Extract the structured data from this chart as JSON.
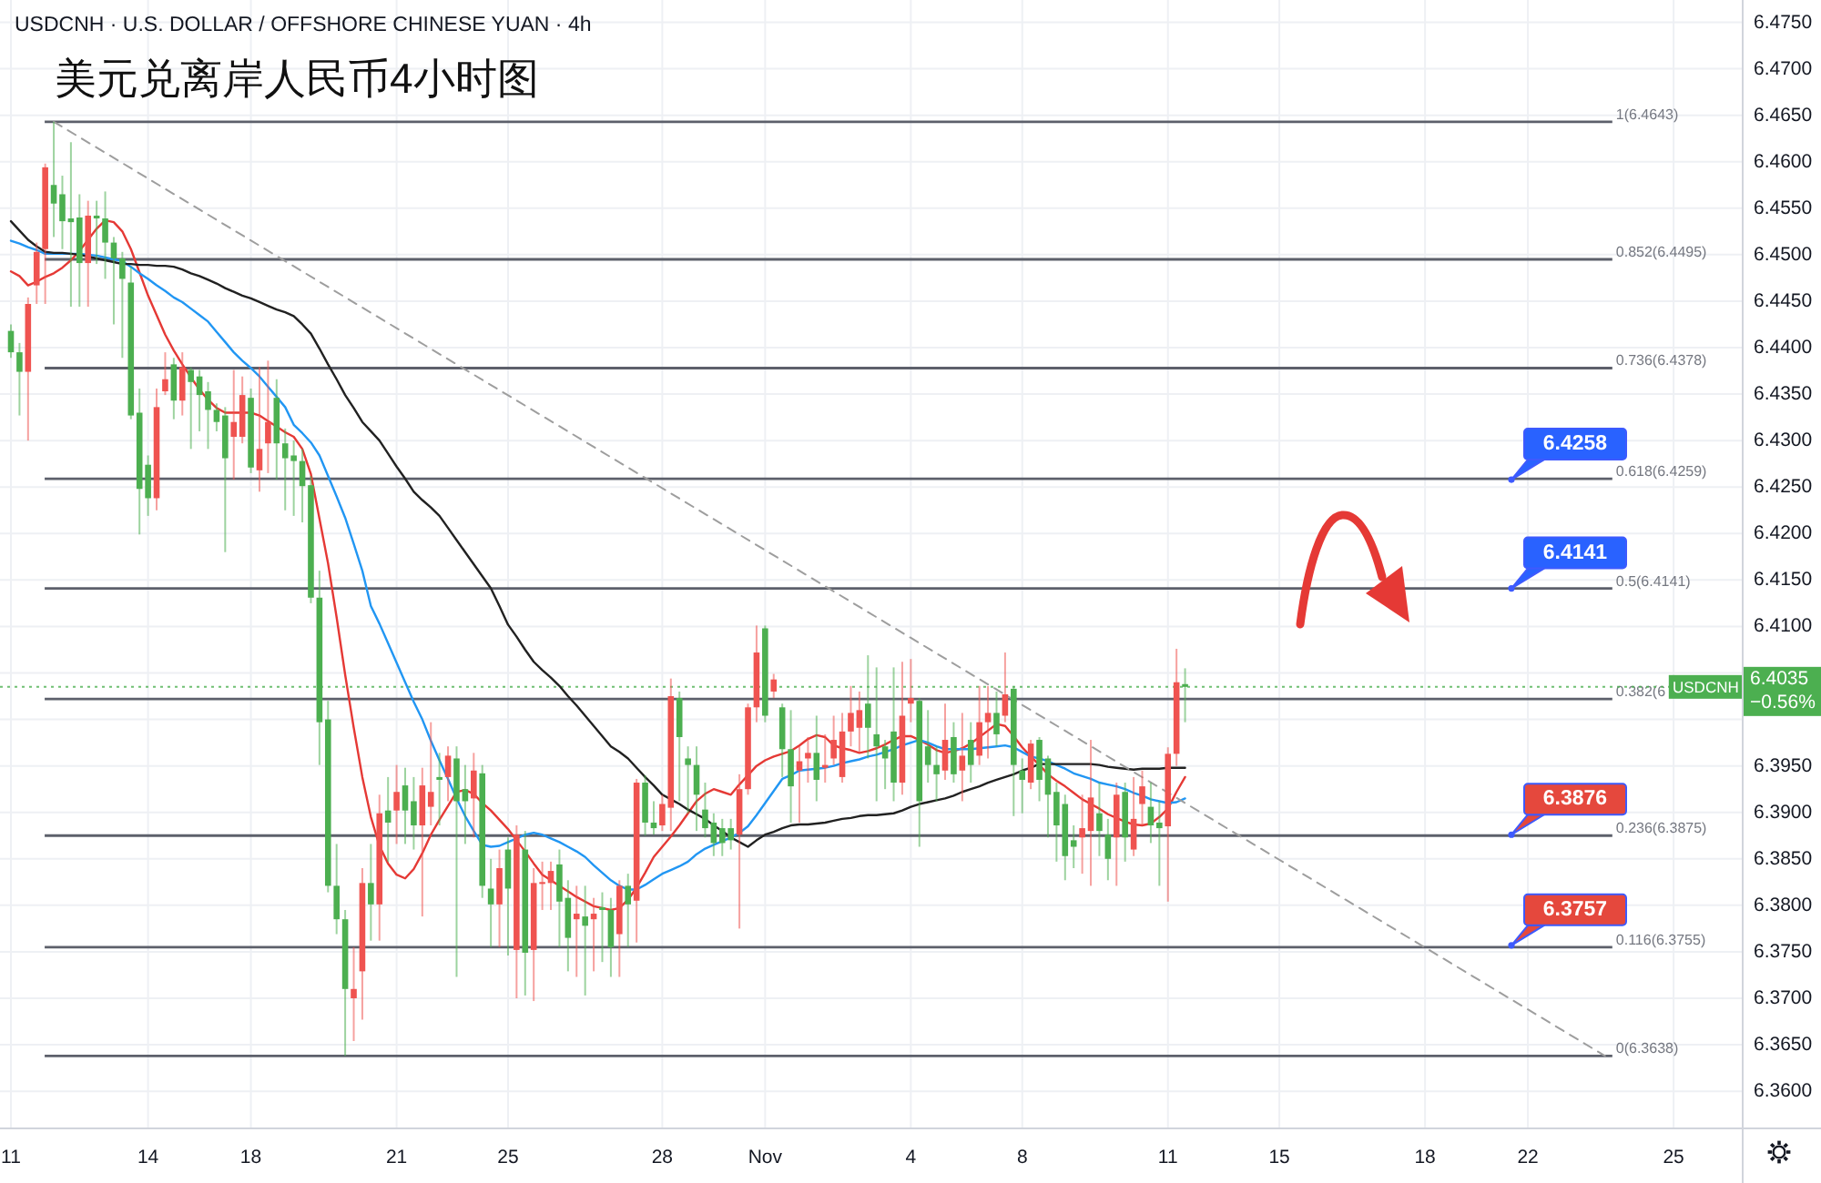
{
  "chart_data": {
    "type": "candlestick",
    "title": "美元兑离岸人民币4小时图",
    "subtitle": "USDCNH · U.S. DOLLAR / OFFSHORE CHINESE YUAN · 4h",
    "categories": [
      "11",
      null,
      null,
      null,
      null,
      null,
      null,
      null,
      null,
      null,
      null,
      null,
      null,
      null,
      null,
      null,
      "14",
      null,
      null,
      null,
      null,
      null,
      null,
      null,
      null,
      null,
      null,
      null,
      "18",
      null,
      null,
      null,
      null,
      null,
      null,
      null,
      null,
      null,
      null,
      null,
      null,
      null,
      null,
      null,
      null,
      "21",
      null,
      null,
      null,
      null,
      null,
      null,
      null,
      null,
      null,
      null,
      null,
      null,
      "25",
      null,
      null,
      null,
      null,
      null,
      null,
      null,
      null,
      null,
      null,
      null,
      null,
      null,
      null,
      null,
      null,
      null,
      "28",
      null,
      null,
      null,
      null,
      null,
      null,
      null,
      null,
      null,
      null,
      null,
      "Nov",
      null,
      null,
      null,
      null,
      null,
      null,
      null,
      null,
      null,
      null,
      null,
      null,
      null,
      null,
      null,
      null,
      "4",
      null,
      null,
      null,
      null,
      null,
      null,
      null,
      null,
      null,
      null,
      null,
      null,
      "8",
      null,
      null,
      null,
      null,
      null,
      null,
      null,
      null,
      null,
      null,
      null,
      null,
      null,
      null,
      null,
      null,
      "11",
      null,
      null,
      null,
      null,
      null,
      null,
      null,
      null,
      null,
      null,
      null,
      null,
      "15",
      null,
      null,
      null,
      null,
      null,
      null,
      null,
      null,
      null,
      null,
      null,
      null,
      null,
      null,
      null,
      null,
      "18",
      null,
      null,
      null,
      null,
      null,
      null,
      null,
      null,
      null,
      null,
      null,
      "22",
      null,
      null,
      null,
      null,
      null,
      null,
      null,
      null,
      null,
      null,
      null,
      null,
      null,
      null,
      null,
      null,
      "25",
      null,
      null,
      null,
      null,
      null,
      null,
      null
    ],
    "ohlc": [
      [
        6.4418,
        6.4425,
        6.4389,
        6.4395
      ],
      [
        6.4395,
        6.4405,
        6.4327,
        6.4374
      ],
      [
        6.4374,
        6.4454,
        6.43,
        6.4447
      ],
      [
        6.4467,
        6.4513,
        6.4447,
        6.4503
      ],
      [
        6.4506,
        6.4598,
        6.4447,
        6.4594
      ],
      [
        6.4575,
        6.4643,
        6.4519,
        6.4555
      ],
      [
        6.4565,
        6.4585,
        6.4506,
        6.4536
      ],
      [
        6.4539,
        6.4621,
        6.4444,
        6.4535
      ],
      [
        6.454,
        6.4565,
        6.4444,
        6.4491
      ],
      [
        6.4491,
        6.4558,
        6.4444,
        6.4542
      ],
      [
        6.4542,
        6.4558,
        6.449,
        6.4539
      ],
      [
        6.4539,
        6.4568,
        6.4474,
        6.4513
      ],
      [
        6.4513,
        6.4519,
        6.4425,
        6.4496
      ],
      [
        6.4496,
        6.4503,
        6.4389,
        6.4474
      ],
      [
        6.447,
        6.4487,
        6.4323,
        6.4327
      ],
      [
        6.433,
        6.4356,
        6.4199,
        6.4248
      ],
      [
        6.4274,
        6.4284,
        6.4219,
        6.4238
      ],
      [
        6.4238,
        6.4356,
        6.4225,
        6.4336
      ],
      [
        6.4353,
        6.4395,
        6.4349,
        6.4366
      ],
      [
        6.4382,
        6.4389,
        6.4323,
        6.4343
      ],
      [
        6.4343,
        6.4395,
        6.4327,
        6.4379
      ],
      [
        6.4376,
        6.4379,
        6.4291,
        6.4363
      ],
      [
        6.4369,
        6.4376,
        6.431,
        6.4349
      ],
      [
        6.4353,
        6.4363,
        6.4291,
        6.4333
      ],
      [
        6.4333,
        6.434,
        6.431,
        6.432
      ],
      [
        6.4327,
        6.4336,
        6.418,
        6.4281
      ],
      [
        6.4304,
        6.4376,
        6.4258,
        6.432
      ],
      [
        6.4304,
        6.4369,
        6.4297,
        6.4349
      ],
      [
        6.4346,
        6.4356,
        6.4265,
        6.4271
      ],
      [
        6.4268,
        6.4379,
        6.4245,
        6.4291
      ],
      [
        6.4297,
        6.4386,
        6.4265,
        6.432
      ],
      [
        6.4346,
        6.4366,
        6.4258,
        6.4297
      ],
      [
        6.4297,
        6.4313,
        6.4225,
        6.4281
      ],
      [
        6.4284,
        6.43,
        6.4219,
        6.4278
      ],
      [
        6.4278,
        6.4291,
        6.4212,
        6.4251
      ],
      [
        6.4252,
        6.4262,
        6.4125,
        6.4131
      ],
      [
        6.4131,
        6.416,
        6.3951,
        6.3997
      ],
      [
        6.4,
        6.402,
        6.3814,
        6.3821
      ],
      [
        6.3821,
        6.3866,
        6.3769,
        6.3785
      ],
      [
        6.3785,
        6.3795,
        6.3638,
        6.371
      ],
      [
        6.37,
        6.3755,
        6.3654,
        6.371
      ],
      [
        6.3729,
        6.384,
        6.3677,
        6.3824
      ],
      [
        6.3824,
        6.3866,
        6.3762,
        6.3801
      ],
      [
        6.3801,
        6.3919,
        6.3762,
        6.3899
      ],
      [
        6.3902,
        6.3938,
        6.3847,
        6.3889
      ],
      [
        6.3902,
        6.3951,
        6.3866,
        6.3922
      ],
      [
        6.3929,
        6.3948,
        6.3866,
        6.3902
      ],
      [
        6.3912,
        6.3938,
        6.386,
        6.3886
      ],
      [
        6.3886,
        6.3948,
        6.3788,
        6.3929
      ],
      [
        6.3906,
        6.3997,
        6.3886,
        6.3922
      ],
      [
        6.3938,
        6.3964,
        6.3886,
        6.3935
      ],
      [
        6.3938,
        6.3971,
        6.3912,
        6.3961
      ],
      [
        6.3958,
        6.3971,
        6.3723,
        6.3912
      ],
      [
        6.3925,
        6.3951,
        6.3866,
        6.3912
      ],
      [
        6.3915,
        6.3964,
        6.3873,
        6.3945
      ],
      [
        6.3942,
        6.3951,
        6.3808,
        6.3821
      ],
      [
        6.3818,
        6.385,
        6.3755,
        6.3801
      ],
      [
        6.3801,
        6.386,
        6.3755,
        6.384
      ],
      [
        6.386,
        6.3873,
        6.3746,
        6.3818
      ],
      [
        6.3752,
        6.3886,
        6.37,
        6.3876
      ],
      [
        6.386,
        6.388,
        6.3703,
        6.3749
      ],
      [
        6.3752,
        6.384,
        6.3697,
        6.3824
      ],
      [
        6.3823,
        6.3847,
        6.3795,
        6.3825
      ],
      [
        6.3824,
        6.3847,
        6.3795,
        6.3837
      ],
      [
        6.3844,
        6.386,
        6.3755,
        6.3804
      ],
      [
        6.3808,
        6.3827,
        6.3729,
        6.3765
      ],
      [
        6.3785,
        6.3821,
        6.3723,
        6.3791
      ],
      [
        6.3788,
        6.3821,
        6.3703,
        6.3778
      ],
      [
        6.3785,
        6.3808,
        6.3729,
        6.3791
      ],
      [
        6.3798,
        6.3814,
        6.3739,
        6.3795
      ],
      [
        6.3795,
        6.3808,
        6.3723,
        6.3755
      ],
      [
        6.3769,
        6.3827,
        6.3723,
        6.3821
      ],
      [
        6.3821,
        6.3834,
        6.3755,
        6.3801
      ],
      [
        6.3805,
        6.3936,
        6.376,
        6.3932
      ],
      [
        6.3932,
        6.394,
        6.3875,
        6.3889
      ],
      [
        6.3889,
        6.3912,
        6.3876,
        6.3883
      ],
      [
        6.3886,
        6.3919,
        6.388,
        6.3909
      ],
      [
        6.3905,
        6.4044,
        6.388,
        6.4025
      ],
      [
        6.4023,
        6.403,
        6.3912,
        6.3981
      ],
      [
        6.3958,
        6.3971,
        6.3899,
        6.3951
      ],
      [
        6.3951,
        6.3971,
        6.388,
        6.3919
      ],
      [
        6.3903,
        6.3932,
        6.3873,
        6.3883
      ],
      [
        6.3889,
        6.3899,
        6.3853,
        6.3867
      ],
      [
        6.3883,
        6.3893,
        6.3853,
        6.3867
      ],
      [
        6.3883,
        6.3893,
        6.386,
        6.387
      ],
      [
        6.3876,
        6.3941,
        6.3775,
        6.3925
      ],
      [
        6.3925,
        6.4017,
        6.3919,
        6.4013
      ],
      [
        6.4013,
        6.4101,
        6.3997,
        6.4072
      ],
      [
        6.4098,
        6.4101,
        6.3997,
        6.4004
      ],
      [
        6.403,
        6.4049,
        6.4023,
        6.4043
      ],
      [
        6.4013,
        6.4017,
        6.3938,
        6.3968
      ],
      [
        6.3968,
        6.401,
        6.3889,
        6.3928
      ],
      [
        6.3945,
        6.3971,
        6.3889,
        6.3955
      ],
      [
        6.3958,
        6.3981,
        6.3932,
        6.3964
      ],
      [
        6.3964,
        6.4004,
        6.3912,
        6.3935
      ],
      [
        6.3948,
        6.3984,
        6.3932,
        6.3951
      ],
      [
        6.3958,
        6.4004,
        6.3951,
        6.3978
      ],
      [
        6.3938,
        6.4007,
        6.3932,
        6.3987
      ],
      [
        6.3987,
        6.4036,
        6.3971,
        6.4007
      ],
      [
        6.3991,
        6.403,
        6.3964,
        6.401
      ],
      [
        6.4017,
        6.4069,
        6.3958,
        6.3991
      ],
      [
        6.3984,
        6.4056,
        6.3912,
        6.3971
      ],
      [
        6.3971,
        6.3978,
        6.3925,
        6.3958
      ],
      [
        6.3987,
        6.4056,
        6.3912,
        6.3932
      ],
      [
        6.3932,
        6.4062,
        6.3919,
        6.4004
      ],
      [
        6.4017,
        6.4065,
        6.3997,
        6.4023
      ],
      [
        6.402,
        6.4023,
        6.3863,
        6.3912
      ],
      [
        6.3971,
        6.401,
        6.3932,
        6.3951
      ],
      [
        6.3951,
        6.3971,
        6.3912,
        6.3941
      ],
      [
        6.3945,
        6.4017,
        6.3935,
        6.3978
      ],
      [
        6.3981,
        6.3997,
        6.3932,
        6.3941
      ],
      [
        6.3945,
        6.4007,
        6.3912,
        6.3961
      ],
      [
        6.3978,
        6.3997,
        6.3932,
        6.3951
      ],
      [
        6.3961,
        6.4036,
        6.3951,
        6.3997
      ],
      [
        6.3997,
        6.4036,
        6.3958,
        6.4007
      ],
      [
        6.4007,
        6.403,
        6.3971,
        6.3984
      ],
      [
        6.4004,
        6.4072,
        6.3997,
        6.4027
      ],
      [
        6.4033,
        6.4036,
        6.3896,
        6.3951
      ],
      [
        6.3945,
        6.3958,
        6.3899,
        6.3935
      ],
      [
        6.3932,
        6.3978,
        6.3925,
        6.3974
      ],
      [
        6.3978,
        6.3981,
        6.3912,
        6.3935
      ],
      [
        6.3958,
        6.3961,
        6.3873,
        6.3919
      ],
      [
        6.3922,
        6.3932,
        6.3847,
        6.3886
      ],
      [
        6.3909,
        6.3919,
        6.3827,
        6.3853
      ],
      [
        6.387,
        6.3886,
        6.384,
        6.3863
      ],
      [
        6.3873,
        6.3919,
        6.3834,
        6.3883
      ],
      [
        6.388,
        6.3978,
        6.3821,
        6.3916
      ],
      [
        6.3899,
        6.3932,
        6.3853,
        6.388
      ],
      [
        6.3876,
        6.3893,
        6.3827,
        6.385
      ],
      [
        6.3873,
        6.3932,
        6.3821,
        6.3919
      ],
      [
        6.3922,
        6.3932,
        6.3847,
        6.3873
      ],
      [
        6.386,
        6.3938,
        6.3853,
        6.3893
      ],
      [
        6.3909,
        6.3945,
        6.3886,
        6.3928
      ],
      [
        6.3906,
        6.3932,
        6.3867,
        6.3886
      ],
      [
        6.3889,
        6.3912,
        6.3821,
        6.3883
      ],
      [
        6.3885,
        6.397,
        6.3804,
        6.3963
      ],
      [
        6.3963,
        6.4076,
        6.395,
        6.404
      ],
      [
        6.4038,
        6.4055,
        6.3997,
        6.4035
      ],
      null,
      null,
      null,
      null,
      null,
      null,
      null,
      null,
      null,
      null,
      null,
      null,
      null,
      null,
      null,
      null,
      null,
      null,
      null,
      null,
      null,
      null,
      null,
      null,
      null,
      null,
      null,
      null,
      null,
      null,
      null,
      null,
      null,
      null,
      null,
      null,
      null,
      null,
      null,
      null,
      null,
      null,
      null,
      null,
      null,
      null,
      null,
      null,
      null,
      null,
      null,
      null,
      null,
      null,
      null,
      null,
      null,
      null,
      null,
      null,
      null,
      null,
      null,
      null
    ],
    "colors": [
      "#4caf50",
      "#4caf50",
      "#ef5350",
      "#ef5350",
      "#ef5350",
      "#4caf50",
      "#4caf50",
      "#4caf50",
      "#4caf50",
      "#ef5350",
      "#4caf50",
      "#4caf50",
      "#4caf50",
      "#4caf50",
      "#4caf50",
      "#4caf50",
      "#4caf50",
      "#ef5350",
      "#ef5350",
      "#4caf50",
      "#ef5350",
      "#4caf50",
      "#4caf50",
      "#4caf50",
      "#4caf50",
      "#4caf50",
      "#ef5350",
      "#ef5350",
      "#4caf50",
      "#ef5350",
      "#ef5350",
      "#4caf50",
      "#4caf50",
      "#4caf50",
      "#4caf50",
      "#4caf50",
      "#4caf50",
      "#4caf50",
      "#4caf50",
      "#4caf50",
      "#ef5350",
      "#ef5350",
      "#4caf50",
      "#ef5350",
      "#4caf50",
      "#ef5350",
      "#4caf50",
      "#4caf50",
      "#ef5350",
      "#ef5350",
      "#4caf50",
      "#ef5350",
      "#4caf50",
      "#4caf50",
      "#ef5350",
      "#4caf50",
      "#4caf50",
      "#ef5350",
      "#4caf50",
      "#ef5350",
      "#4caf50",
      "#ef5350",
      "#ef5350",
      "#ef5350",
      "#4caf50",
      "#4caf50",
      "#ef5350",
      "#4caf50",
      "#ef5350",
      "#4caf50",
      "#4caf50",
      "#ef5350",
      "#4caf50",
      "#ef5350",
      "#4caf50",
      "#4caf50",
      "#ef5350",
      "#ef5350",
      "#4caf50",
      "#4caf50",
      "#4caf50",
      "#4caf50",
      "#4caf50",
      "#4caf50",
      "#4caf50",
      "#ef5350",
      "#ef5350",
      "#ef5350",
      "#4caf50",
      "#ef5350",
      "#4caf50",
      "#4caf50",
      "#ef5350",
      "#ef5350",
      "#4caf50",
      "#ef5350",
      "#ef5350",
      "#ef5350",
      "#ef5350",
      "#ef5350",
      "#4caf50",
      "#4caf50",
      "#4caf50",
      "#4caf50",
      "#ef5350",
      "#ef5350",
      "#4caf50",
      "#4caf50",
      "#4caf50",
      "#ef5350",
      "#4caf50",
      "#ef5350",
      "#4caf50",
      "#ef5350",
      "#ef5350",
      "#4caf50",
      "#ef5350",
      "#4caf50",
      "#4caf50",
      "#ef5350",
      "#4caf50",
      "#4caf50",
      "#4caf50",
      "#4caf50",
      "#4caf50",
      "#ef5350",
      "#ef5350",
      "#4caf50",
      "#4caf50",
      "#ef5350",
      "#4caf50",
      "#ef5350",
      "#ef5350",
      "#4caf50",
      "#4caf50",
      "#ef5350",
      "#ef5350",
      "#4caf50",
      null,
      null,
      null,
      null,
      null,
      null,
      null,
      null,
      null,
      null,
      null,
      null,
      null,
      null,
      null,
      null,
      null,
      null,
      null,
      null,
      null,
      null,
      null,
      null,
      null,
      null,
      null,
      null,
      null,
      null,
      null,
      null,
      null,
      null,
      null,
      null,
      null,
      null,
      null,
      null,
      null,
      null,
      null,
      null,
      null,
      null,
      null,
      null,
      null,
      null,
      null,
      null,
      null,
      null,
      null,
      null,
      null,
      null,
      null,
      null,
      null,
      null,
      null,
      null
    ],
    "series": [
      {
        "type": "line",
        "color": "#e53935",
        "values": [
          6.4482,
          6.4477,
          6.4467,
          6.4471,
          6.4476,
          6.448,
          6.4486,
          6.4494,
          6.4504,
          6.4516,
          6.4528,
          6.4537,
          6.4535,
          6.4525,
          6.4506,
          6.4481,
          6.4456,
          6.4435,
          6.4414,
          6.4397,
          6.4382,
          6.4368,
          6.4355,
          6.4344,
          6.4335,
          6.433,
          6.433,
          6.433,
          6.433,
          6.4327,
          6.4321,
          6.4315,
          6.4309,
          6.4304,
          6.4291,
          6.4264,
          6.4216,
          6.4168,
          6.411,
          6.4048,
          6.3991,
          6.3938,
          6.3895,
          6.3864,
          6.3845,
          6.3833,
          6.3829,
          6.3839,
          6.3856,
          6.3876,
          6.3892,
          6.3907,
          6.3922,
          6.3924,
          6.392,
          6.391,
          6.3902,
          6.3892,
          6.3882,
          6.387,
          6.3858,
          6.3845,
          6.3833,
          6.3827,
          6.3821,
          6.3815,
          6.3809,
          6.3804,
          6.3799,
          6.3797,
          6.3795,
          6.3797,
          6.3806,
          6.3819,
          6.3835,
          6.3852,
          6.3863,
          6.3874,
          6.3886,
          6.3899,
          6.3912,
          6.392,
          6.3925,
          6.3922,
          6.3919,
          6.393,
          6.394,
          6.395,
          6.3956,
          6.396,
          6.3963,
          6.3966,
          6.3972,
          6.3979,
          6.3983,
          6.3981,
          6.3972,
          6.3969,
          6.3967,
          6.3964,
          6.3966,
          6.3969,
          6.3973,
          6.3978,
          6.3982,
          6.3982,
          6.3978,
          6.3973,
          6.3967,
          6.3964,
          6.3966,
          6.3969,
          6.3974,
          6.3981,
          6.3988,
          6.3995,
          6.3993,
          6.3982,
          6.397,
          6.396,
          6.3951,
          6.3941,
          6.3934,
          6.3928,
          6.3921,
          6.3914,
          6.3909,
          6.3904,
          6.3898,
          6.3894,
          6.389,
          6.3887,
          6.3886,
          6.3888,
          6.3895,
          6.3904,
          6.3922,
          6.3938,
          null,
          null,
          null,
          null,
          null,
          null,
          null,
          null,
          null,
          null,
          null,
          null,
          null,
          null,
          null,
          null,
          null,
          null,
          null,
          null,
          null,
          null,
          null,
          null,
          null,
          null,
          null,
          null,
          null,
          null,
          null,
          null,
          null,
          null,
          null,
          null,
          null,
          null,
          null,
          null,
          null,
          null,
          null,
          null,
          null,
          null,
          null,
          null,
          null,
          null,
          null,
          null,
          null,
          null,
          null,
          null,
          null,
          null,
          null,
          null,
          null,
          null,
          null,
          null
        ]
      },
      {
        "type": "line",
        "color": "#2196f3",
        "values": [
          6.4515,
          6.4512,
          6.4508,
          6.4505,
          6.4501,
          6.4501,
          6.4501,
          6.4501,
          6.4501,
          6.45,
          6.4499,
          6.4497,
          6.4495,
          6.4493,
          6.4487,
          6.448,
          6.4474,
          6.4467,
          6.4461,
          6.4454,
          6.4449,
          6.4442,
          6.4435,
          6.4428,
          6.4417,
          6.4406,
          6.4395,
          6.4386,
          6.4378,
          6.4369,
          6.4358,
          6.4347,
          6.4336,
          6.4317,
          6.4308,
          6.4298,
          6.4284,
          6.4262,
          6.424,
          6.4217,
          6.4189,
          6.416,
          6.4122,
          6.4103,
          6.4082,
          6.4061,
          6.404,
          6.4019,
          6.4,
          6.3977,
          6.3956,
          6.3936,
          6.3915,
          6.3896,
          6.388,
          6.3865,
          6.3863,
          6.3864,
          6.3868,
          6.3872,
          6.3876,
          6.3878,
          6.3876,
          6.3872,
          6.3868,
          6.3863,
          6.3858,
          6.3852,
          6.3843,
          6.3835,
          6.3827,
          6.3821,
          6.3817,
          6.3817,
          6.3822,
          6.3828,
          6.3834,
          6.3838,
          6.3842,
          6.3847,
          6.3855,
          6.3861,
          6.3865,
          6.3869,
          6.3873,
          6.3878,
          6.3885,
          6.3897,
          6.391,
          6.3923,
          6.3936,
          6.394,
          6.3945,
          6.3946,
          6.3947,
          6.3948,
          6.395,
          6.3953,
          6.3955,
          6.3957,
          6.396,
          6.3962,
          6.3965,
          6.3968,
          6.3972,
          6.3975,
          6.3978,
          6.3975,
          6.3971,
          6.3968,
          6.3968,
          6.3968,
          6.3968,
          6.3969,
          6.397,
          6.3971,
          6.3972,
          6.397,
          6.3965,
          6.396,
          6.3958,
          6.3955,
          6.3951,
          6.3947,
          6.3942,
          6.3939,
          6.3936,
          6.3932,
          6.393,
          6.3928,
          6.3925,
          6.3921,
          6.3918,
          6.3914,
          6.3912,
          6.391,
          6.3911,
          6.3915,
          null,
          null,
          null,
          null,
          null,
          null,
          null,
          null,
          null,
          null,
          null,
          null,
          null,
          null,
          null,
          null,
          null,
          null,
          null,
          null,
          null,
          null,
          null,
          null,
          null,
          null,
          null,
          null,
          null,
          null,
          null,
          null,
          null,
          null,
          null,
          null,
          null,
          null,
          null,
          null,
          null,
          null,
          null,
          null,
          null,
          null,
          null,
          null,
          null,
          null,
          null,
          null,
          null,
          null,
          null,
          null,
          null,
          null,
          null,
          null,
          null,
          null,
          null,
          null
        ]
      },
      {
        "type": "line",
        "color": "#212121",
        "values": [
          6.4536,
          6.4526,
          6.4516,
          6.4509,
          6.4503,
          6.4502,
          6.4502,
          6.4501,
          6.45,
          6.4498,
          6.4496,
          6.4494,
          6.4492,
          6.449,
          6.449,
          6.4489,
          6.4489,
          6.4488,
          6.4488,
          6.4487,
          6.4484,
          6.448,
          6.4477,
          6.4473,
          6.4469,
          6.4464,
          6.446,
          6.4456,
          6.4453,
          6.4449,
          6.4445,
          6.4441,
          6.4438,
          6.4434,
          6.4425,
          6.4415,
          6.4399,
          6.4382,
          6.4366,
          6.4349,
          6.4335,
          6.432,
          6.431,
          6.43,
          6.4286,
          6.4272,
          6.4259,
          6.4245,
          6.4236,
          6.4228,
          6.4219,
          6.4206,
          6.4193,
          6.418,
          6.4167,
          6.4154,
          6.4141,
          6.4122,
          6.4102,
          6.4089,
          6.4075,
          6.4062,
          6.4053,
          6.4045,
          6.4036,
          6.4025,
          6.4015,
          6.4004,
          6.3993,
          6.3982,
          6.3971,
          6.3965,
          6.3958,
          6.3948,
          6.3938,
          6.3929,
          6.3919,
          6.3914,
          6.3909,
          6.3903,
          6.3898,
          6.3893,
          6.3886,
          6.388,
          6.3873,
          6.3868,
          6.3863,
          6.387,
          6.3876,
          6.3879,
          6.3883,
          6.3886,
          6.3887,
          6.3887,
          6.3888,
          6.3889,
          6.3891,
          6.3893,
          6.3894,
          6.3896,
          6.3897,
          6.3897,
          6.3898,
          6.3899,
          6.3902,
          6.3906,
          6.3909,
          6.3911,
          6.3913,
          6.3915,
          6.3918,
          6.3922,
          6.3925,
          6.3928,
          6.3932,
          6.3935,
          6.3938,
          6.3941,
          6.3945,
          6.3948,
          6.3952,
          6.3952,
          6.3952,
          6.3952,
          6.3952,
          6.3952,
          6.3952,
          6.3951,
          6.3949,
          6.3948,
          6.3947,
          6.3946,
          6.3947,
          6.3947,
          6.3947,
          6.3948,
          6.3948,
          6.3948,
          null,
          null,
          null,
          null,
          null,
          null,
          null,
          null,
          null,
          null,
          null,
          null,
          null,
          null,
          null,
          null,
          null,
          null,
          null,
          null,
          null,
          null,
          null,
          null,
          null,
          null,
          null,
          null,
          null,
          null,
          null,
          null,
          null,
          null,
          null,
          null,
          null,
          null,
          null,
          null,
          null,
          null,
          null,
          null,
          null,
          null,
          null,
          null,
          null,
          null,
          null,
          null,
          null,
          null,
          null,
          null,
          null,
          null,
          null,
          null,
          null,
          null,
          null,
          null
        ]
      },
      {
        "type": "line",
        "color": "#9e9e9e",
        "line_style": "dashed",
        "values": [
          null,
          null,
          null,
          null,
          null,
          6.4643,
          null,
          null,
          null,
          null,
          null,
          null,
          null,
          null,
          null,
          null,
          null,
          null,
          null,
          null,
          null,
          null,
          null,
          null,
          null,
          null,
          null,
          null,
          null,
          null,
          null,
          null,
          null,
          null,
          null,
          null,
          null,
          null,
          null,
          null,
          null,
          null,
          null,
          null,
          null,
          null,
          null,
          null,
          null,
          null,
          null,
          null,
          null,
          null,
          null,
          null,
          null,
          null,
          null,
          null,
          null,
          null,
          null,
          null,
          null,
          null,
          null,
          null,
          null,
          null,
          null,
          null,
          null,
          null,
          null,
          null,
          null,
          null,
          null,
          null,
          null,
          null,
          null,
          null,
          null,
          null,
          null,
          null,
          null,
          null,
          null,
          null,
          null,
          null,
          null,
          null,
          null,
          null,
          null,
          null,
          null,
          null,
          null,
          null,
          null,
          null,
          null,
          null,
          null,
          null,
          null,
          null,
          null,
          null,
          null,
          null,
          null,
          null,
          null,
          null,
          null,
          null,
          null,
          null,
          null,
          null,
          null,
          null,
          null,
          null,
          null,
          null,
          null,
          null,
          null,
          null,
          null,
          null,
          null,
          null,
          null,
          null,
          null,
          null,
          null,
          null,
          null,
          null,
          null,
          null,
          null,
          null,
          null,
          null,
          null,
          null,
          null,
          null,
          null,
          null,
          null,
          null,
          null,
          null,
          null,
          null,
          null,
          null,
          null,
          null,
          null,
          null,
          null,
          null,
          null,
          null,
          null,
          null,
          null,
          null,
          null,
          null,
          null,
          null,
          null,
          null,
          6.3638,
          null,
          null,
          null,
          null,
          null,
          null,
          null,
          null,
          null,
          null,
          null,
          null,
          null,
          null,
          null
        ]
      }
    ],
    "ylim": [
      6.356,
      6.4774
    ],
    "yticks": [
      {
        "value": 6.36,
        "label": "6.3600"
      },
      {
        "value": 6.365,
        "label": "6.3650"
      },
      {
        "value": 6.37,
        "label": "6.3700"
      },
      {
        "value": 6.375,
        "label": "6.3750"
      },
      {
        "value": 6.38,
        "label": "6.3800"
      },
      {
        "value": 6.385,
        "label": "6.3850"
      },
      {
        "value": 6.39,
        "label": "6.3900"
      },
      {
        "value": 6.395,
        "label": "6.3950"
      },
      {
        "value": 6.4,
        "label": null
      },
      {
        "value": 6.405,
        "label": null
      },
      {
        "value": 6.41,
        "label": "6.4100"
      },
      {
        "value": 6.415,
        "label": "6.4150"
      },
      {
        "value": 6.42,
        "label": "6.4200"
      },
      {
        "value": 6.425,
        "label": "6.4250"
      },
      {
        "value": 6.43,
        "label": "6.4300"
      },
      {
        "value": 6.435,
        "label": "6.4350"
      },
      {
        "value": 6.44,
        "label": "6.4400"
      },
      {
        "value": 6.445,
        "label": "6.4450"
      },
      {
        "value": 6.45,
        "label": "6.4500"
      },
      {
        "value": 6.455,
        "label": "6.4550"
      },
      {
        "value": 6.46,
        "label": "6.4600"
      },
      {
        "value": 6.465,
        "label": "6.4650"
      },
      {
        "value": 6.47,
        "label": "6.4700"
      },
      {
        "value": 6.475,
        "label": "6.4750"
      }
    ],
    "grid": true,
    "ref_lines": [
      {
        "axis": "y",
        "value": 6.4643,
        "label": "1(6.4643)",
        "color": "#5d606b"
      },
      {
        "axis": "y",
        "value": 6.4495,
        "label": "0.852(6.4495)",
        "color": "#5d606b"
      },
      {
        "axis": "y",
        "value": 6.4378,
        "label": "0.736(6.4378)",
        "color": "#5d606b"
      },
      {
        "axis": "y",
        "value": 6.4259,
        "label": "0.618(6.4259)",
        "color": "#5d606b"
      },
      {
        "axis": "y",
        "value": 6.4141,
        "label": "0.5(6.4141)",
        "color": "#5d606b"
      },
      {
        "axis": "y",
        "value": 6.4022,
        "label": "0.382(6",
        "color": "#5d606b"
      },
      {
        "axis": "y",
        "value": 6.3875,
        "label": "0.236(6.3875)",
        "color": "#5d606b"
      },
      {
        "axis": "y",
        "value": 6.3755,
        "label": "0.116(6.3755)",
        "color": "#5d606b"
      },
      {
        "axis": "y",
        "value": 6.3638,
        "label": "0(6.3638)",
        "color": "#5d606b"
      },
      {
        "axis": "y",
        "value": 6.4035,
        "label": "USDCNH",
        "color": "#4caf50",
        "line_style": "dotted"
      }
    ],
    "annotations": [
      {
        "text": "6.4258",
        "y": 6.4258
      },
      {
        "text": "6.4141",
        "y": 6.4141
      },
      {
        "text": "6.3876",
        "y": 6.3876
      },
      {
        "text": "6.3757",
        "y": 6.3757
      },
      "6.4035",
      "−0.56%"
    ]
  }
}
